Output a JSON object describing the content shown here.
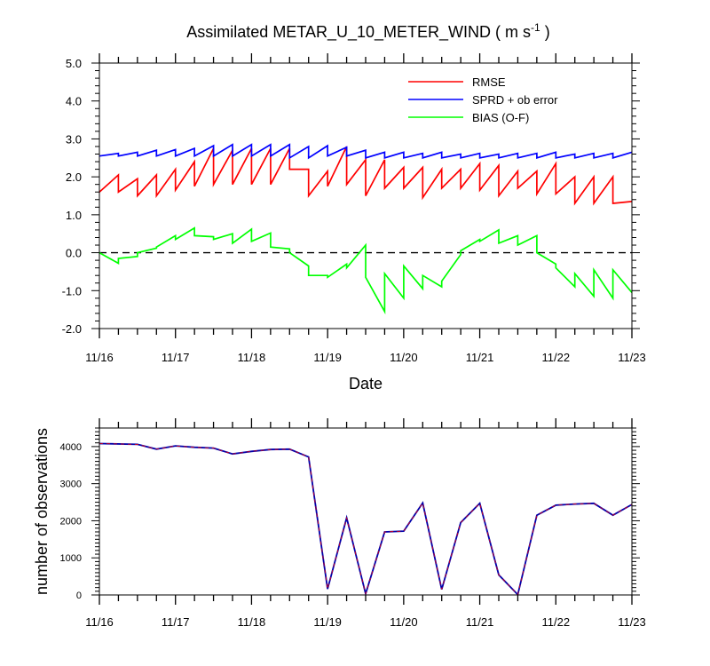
{
  "chart_data": [
    {
      "type": "line",
      "title": "Assimilated METAR_U_10_METER_WIND ( m s",
      "title_superscript": "-1",
      "title_suffix": " )",
      "xlabel": "Date",
      "ylabel": "",
      "x_tick_labels": [
        "11/16",
        "11/17",
        "11/18",
        "11/19",
        "11/20",
        "11/21",
        "11/22",
        "11/23"
      ],
      "y_tick_labels": [
        "-2.0",
        "-1.0",
        "0.0",
        "1.0",
        "2.0",
        "3.0",
        "4.0",
        "5.0"
      ],
      "xlim": [
        0,
        7
      ],
      "ylim": [
        -2,
        5
      ],
      "zero_line": true,
      "legend_position": "top-right",
      "colors": {
        "RMSE": "#ff0000",
        "SPRD + ob error": "#0000ff",
        "BIAS (O-F)": "#00ff00"
      },
      "series": [
        {
          "name": "RMSE",
          "x": [
            0,
            0.25,
            0.25,
            0.5,
            0.5,
            0.75,
            0.75,
            1.0,
            1.0,
            1.25,
            1.25,
            1.5,
            1.5,
            1.75,
            1.75,
            2.0,
            2.0,
            2.25,
            2.25,
            2.5,
            2.5,
            2.75,
            2.75,
            3.0,
            3.0,
            3.25,
            3.25,
            3.5,
            3.5,
            3.75,
            3.75,
            4.0,
            4.0,
            4.25,
            4.25,
            4.5,
            4.5,
            4.75,
            4.75,
            5.0,
            5.0,
            5.25,
            5.25,
            5.5,
            5.5,
            5.75,
            5.75,
            6.0,
            6.0,
            6.25,
            6.25,
            6.5,
            6.5,
            6.75,
            6.75,
            7.0
          ],
          "values": [
            1.6,
            2.05,
            1.6,
            1.95,
            1.5,
            2.05,
            1.5,
            2.2,
            1.65,
            2.4,
            1.75,
            2.75,
            1.8,
            2.7,
            1.8,
            2.75,
            1.8,
            2.75,
            1.8,
            2.75,
            2.2,
            2.2,
            1.5,
            2.15,
            1.75,
            2.8,
            1.8,
            2.45,
            1.5,
            2.45,
            1.7,
            2.25,
            1.7,
            2.25,
            1.45,
            2.2,
            1.7,
            2.2,
            1.7,
            2.35,
            1.65,
            2.3,
            1.5,
            2.15,
            1.7,
            2.15,
            1.55,
            2.35,
            1.55,
            2.0,
            1.3,
            2.0,
            1.3,
            2.0,
            1.3,
            1.35
          ]
        },
        {
          "name": "SPRD + ob error",
          "x": [
            0,
            0.25,
            0.25,
            0.5,
            0.5,
            0.75,
            0.75,
            1.0,
            1.0,
            1.25,
            1.25,
            1.5,
            1.5,
            1.75,
            1.75,
            2.0,
            2.0,
            2.25,
            2.25,
            2.5,
            2.5,
            2.75,
            2.75,
            3.0,
            3.0,
            3.25,
            3.25,
            3.5,
            3.5,
            3.75,
            3.75,
            4.0,
            4.0,
            4.25,
            4.25,
            4.5,
            4.5,
            4.75,
            4.75,
            5.0,
            5.0,
            5.25,
            5.25,
            5.5,
            5.5,
            5.75,
            5.75,
            6.0,
            6.0,
            6.25,
            6.25,
            6.5,
            6.5,
            6.75,
            6.75,
            7.0
          ],
          "values": [
            2.55,
            2.62,
            2.55,
            2.65,
            2.55,
            2.7,
            2.55,
            2.72,
            2.55,
            2.75,
            2.55,
            2.82,
            2.55,
            2.85,
            2.55,
            2.85,
            2.55,
            2.85,
            2.55,
            2.85,
            2.5,
            2.8,
            2.5,
            2.82,
            2.55,
            2.78,
            2.55,
            2.7,
            2.5,
            2.65,
            2.5,
            2.65,
            2.5,
            2.62,
            2.5,
            2.65,
            2.5,
            2.6,
            2.5,
            2.62,
            2.5,
            2.6,
            2.5,
            2.62,
            2.5,
            2.62,
            2.5,
            2.65,
            2.5,
            2.6,
            2.5,
            2.62,
            2.5,
            2.62,
            2.5,
            2.65
          ]
        },
        {
          "name": "BIAS (O-F)",
          "x": [
            0,
            0.25,
            0.25,
            0.5,
            0.5,
            0.75,
            0.75,
            1.0,
            1.0,
            1.25,
            1.25,
            1.5,
            1.5,
            1.75,
            1.75,
            2.0,
            2.0,
            2.25,
            2.25,
            2.5,
            2.5,
            2.75,
            2.75,
            3.0,
            3.0,
            3.25,
            3.25,
            3.5,
            3.5,
            3.75,
            3.75,
            4.0,
            4.0,
            4.25,
            4.25,
            4.5,
            4.5,
            4.75,
            4.75,
            5.0,
            5.0,
            5.25,
            5.25,
            5.5,
            5.5,
            5.75,
            5.75,
            6.0,
            6.0,
            6.25,
            6.25,
            6.5,
            6.5,
            6.75,
            6.75,
            7.0
          ],
          "values": [
            0.0,
            -0.28,
            -0.15,
            -0.1,
            0.0,
            0.12,
            0.15,
            0.45,
            0.35,
            0.65,
            0.45,
            0.42,
            0.35,
            0.5,
            0.25,
            0.62,
            0.3,
            0.52,
            0.15,
            0.1,
            0.0,
            -0.35,
            -0.6,
            -0.6,
            -0.65,
            -0.3,
            -0.4,
            0.2,
            -0.65,
            -1.55,
            -0.55,
            -1.2,
            -0.35,
            -0.95,
            -0.6,
            -0.9,
            -0.75,
            -0.05,
            0.05,
            0.35,
            0.3,
            0.6,
            0.25,
            0.45,
            0.2,
            0.45,
            0.0,
            -0.3,
            -0.4,
            -0.9,
            -0.55,
            -1.15,
            -0.45,
            -1.2,
            -0.45,
            -1.05
          ]
        }
      ]
    },
    {
      "type": "line",
      "title": "",
      "xlabel": "",
      "ylabel": "number of observations",
      "x_tick_labels": [
        "11/16",
        "11/17",
        "11/18",
        "11/19",
        "11/20",
        "11/21",
        "11/22",
        "11/23"
      ],
      "y_tick_labels": [
        "0",
        "1000",
        "2000",
        "3000",
        "4000"
      ],
      "xlim": [
        0,
        7
      ],
      "ylim": [
        0,
        4500
      ],
      "colors": {
        "observations": "#0000aa",
        "observations_dash": "#ff0000"
      },
      "series": [
        {
          "x": [
            0,
            0.5,
            0.75,
            1.0,
            1.25,
            1.5,
            1.75,
            2.0,
            2.25,
            2.5,
            2.75,
            3.0,
            3.25,
            3.5,
            3.75,
            4.0,
            4.25,
            4.5,
            4.75,
            5.0,
            5.25,
            5.5,
            5.75,
            6.0,
            6.25,
            6.5,
            6.75,
            7.0
          ],
          "values": [
            4080,
            4060,
            3930,
            4020,
            3980,
            3960,
            3800,
            3870,
            3920,
            3930,
            3720,
            160,
            2080,
            30,
            1700,
            1720,
            2480,
            150,
            1950,
            2470,
            540,
            10,
            2150,
            2420,
            2450,
            2470,
            2150,
            2440
          ]
        }
      ]
    }
  ]
}
